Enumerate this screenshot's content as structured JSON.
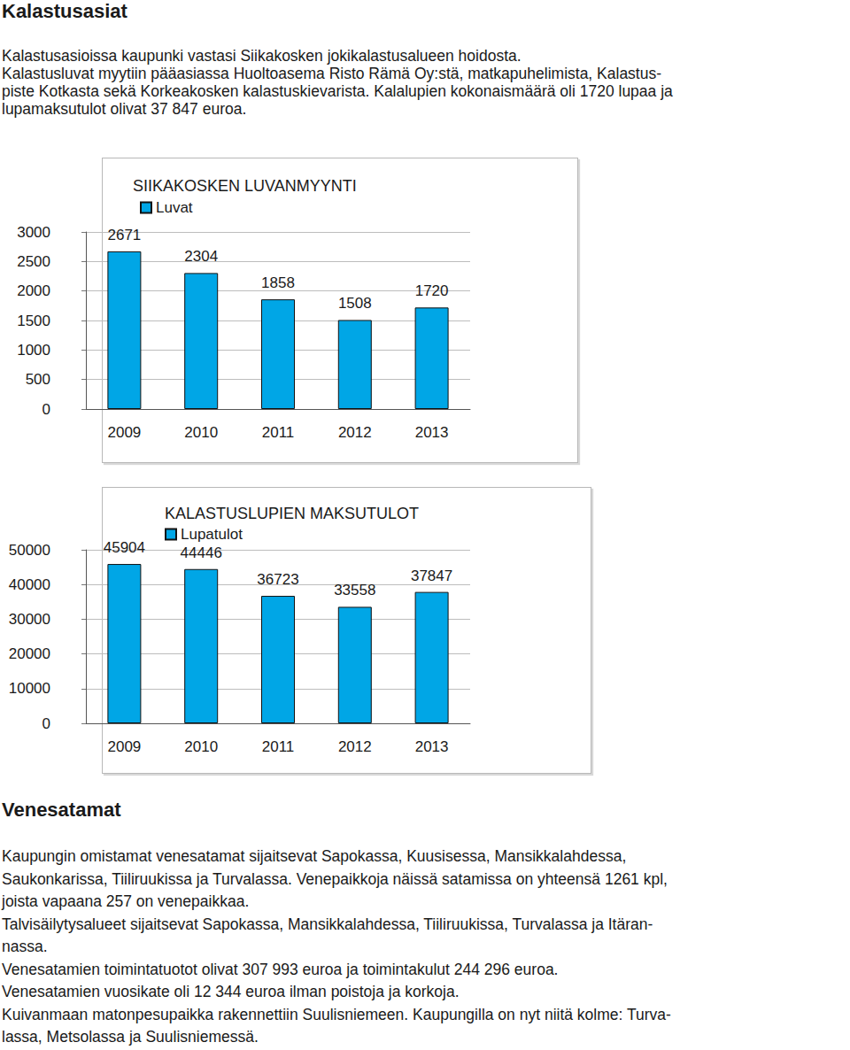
{
  "sections": [
    {
      "heading": "Kalastusasiat",
      "lines": [
        "Kalastusasioissa kaupunki vastasi Siikakosken jokikalastusalueen hoidosta.",
        "Kalastusluvat myytiin pääasiassa Huoltoasema Risto Rämä Oy:stä, matkapuhelimista, Kalastus-",
        "piste Kotkasta sekä Korkeakosken kalastuskievarista. Kalalupien kokonaismäärä oli 1720 lupaa ja",
        "lupamaksutulot olivat 37 847 euroa."
      ]
    },
    {
      "heading": "Venesatamat",
      "lines": [
        "Kaupungin omistamat venesatamat sijaitsevat Sapokassa, Kuusisessa, Mansikkalahdessa,",
        "Saukonkarissa, Tiiliruukissa ja Turvalassa. Venepaikkoja näissä satamissa on yhteensä 1261 kpl,",
        "joista vapaana 257 on venepaikkaa.",
        "Talvisäilytysalueet sijaitsevat Sapokassa, Mansikkalahdessa, Tiiliruukissa, Turvalassa ja Itäran-",
        "nassa.",
        "Venesatamien toimintatuotot olivat 307 993 euroa ja toimintakulut 244 296 euroa.",
        "Venesatamien vuosikate oli 12 344 euroa ilman poistoja ja korkoja.",
        "Kuivanmaan matonpesupaikka rakennettiin Suulisniemeen. Kaupungilla on nyt niitä kolme: Turva-",
        "lassa, Metsolassa ja Suulisniemessä."
      ]
    }
  ],
  "chart_data": [
    {
      "type": "bar",
      "title": "SIIKAKOSKEN LUVANMYYNTI",
      "categories": [
        "2009",
        "2010",
        "2011",
        "2012",
        "2013"
      ],
      "series": [
        {
          "name": "Luvat",
          "color": "#00a6e6",
          "values": [
            2671,
            2304,
            1858,
            1508,
            1720
          ]
        }
      ],
      "ylim": [
        0,
        3000
      ],
      "yticks": [
        0,
        500,
        1000,
        1500,
        2000,
        2500,
        3000
      ],
      "grid": true,
      "data_labels": true,
      "legend": "top"
    },
    {
      "type": "bar",
      "title": "KALASTUSLUPIEN MAKSUTULOT",
      "categories": [
        "2009",
        "2010",
        "2011",
        "2012",
        "2013"
      ],
      "series": [
        {
          "name": "Lupatulot",
          "color": "#00a6e6",
          "values": [
            45904,
            44446,
            36723,
            33558,
            37847
          ]
        }
      ],
      "ylim": [
        0,
        50000
      ],
      "yticks": [
        0,
        10000,
        20000,
        30000,
        40000,
        50000
      ],
      "grid": true,
      "data_labels": true,
      "legend": "top"
    }
  ]
}
